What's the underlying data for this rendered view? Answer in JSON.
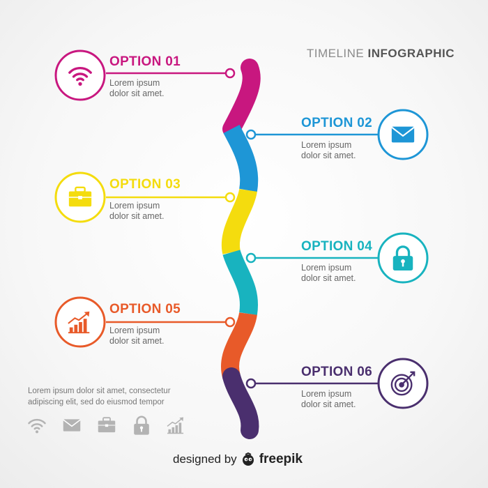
{
  "title": {
    "prefix": "TIMELINE",
    "emphasis": "INFOGRAPHIC"
  },
  "options": [
    {
      "label": "OPTION 01",
      "line1": "Lorem ipsum",
      "line2": "dolor sit amet.",
      "color": "#c8177f",
      "icon": "wifi-icon"
    },
    {
      "label": "OPTION 02",
      "line1": "Lorem ipsum",
      "line2": "dolor sit amet.",
      "color": "#1e96d6",
      "icon": "envelope-icon"
    },
    {
      "label": "OPTION 03",
      "line1": "Lorem ipsum",
      "line2": "dolor sit amet.",
      "color": "#f4dc0e",
      "icon": "briefcase-icon"
    },
    {
      "label": "OPTION 04",
      "line1": "Lorem ipsum",
      "line2": "dolor sit amet.",
      "color": "#18b3bf",
      "icon": "padlock-icon"
    },
    {
      "label": "OPTION 05",
      "line1": "Lorem ipsum",
      "line2": "dolor sit amet.",
      "color": "#e85a29",
      "icon": "growth-chart-icon"
    },
    {
      "label": "OPTION 06",
      "line1": "Lorem ipsum",
      "line2": "dolor sit amet.",
      "color": "#4a2f6e",
      "icon": "target-icon"
    }
  ],
  "footer": {
    "line1": "Lorem ipsum dolor sit amet, consectetur",
    "line2": "adipiscing elit, sed do eiusmod tempor"
  },
  "gray_icons": [
    "wifi-icon",
    "envelope-icon",
    "briefcase-icon",
    "padlock-icon",
    "growth-chart-icon"
  ],
  "credit": {
    "text": "designed by",
    "brand": "freepik"
  },
  "colors": {
    "icon_gray": "#b3b3b3",
    "text_gray": "#666666"
  }
}
